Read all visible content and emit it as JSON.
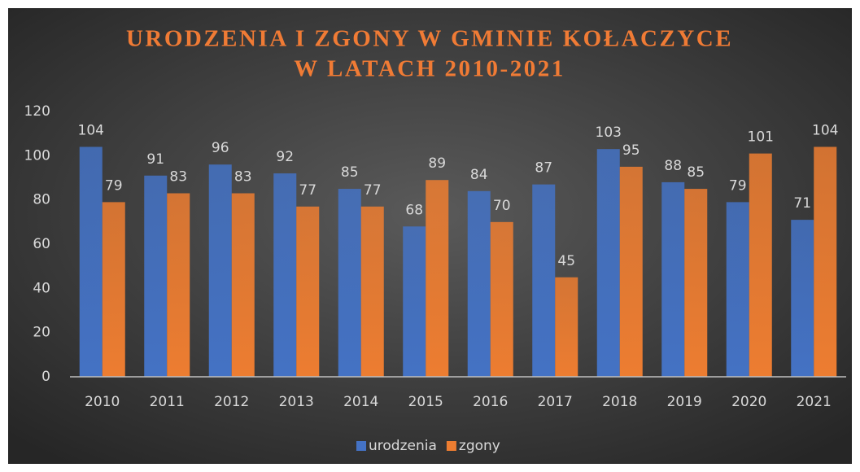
{
  "chart_data": {
    "type": "bar",
    "title": [
      "URODZENIA I ZGONY W GMINIE KOŁACZYCE",
      "W LATACH 2010-2021"
    ],
    "categories": [
      "2010",
      "2011",
      "2012",
      "2013",
      "2014",
      "2015",
      "2016",
      "2017",
      "2018",
      "2019",
      "2020",
      "2021"
    ],
    "series": [
      {
        "name": "urodzenia",
        "color": "#4472c4",
        "values": [
          104,
          91,
          96,
          92,
          85,
          68,
          84,
          87,
          103,
          88,
          79,
          71
        ]
      },
      {
        "name": "zgony",
        "color": "#ed7d31",
        "values": [
          79,
          83,
          83,
          77,
          77,
          89,
          70,
          45,
          95,
          85,
          101,
          104
        ]
      }
    ],
    "ylim": [
      0,
      120
    ],
    "yticks": [
      0,
      20,
      40,
      60,
      80,
      100,
      120
    ],
    "grid": false,
    "legend": "bottom"
  }
}
